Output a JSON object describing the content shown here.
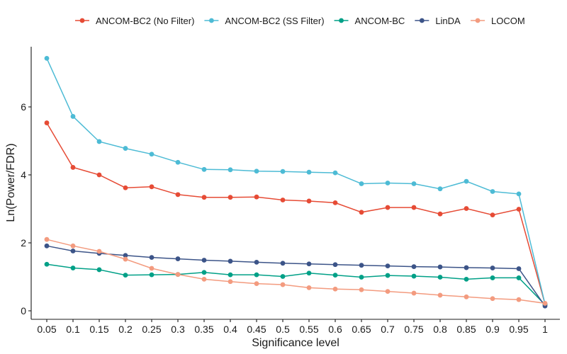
{
  "chart_data": {
    "type": "line",
    "xlabel": "Significance level",
    "ylabel": "Ln(Power/FDR)",
    "categories": [
      "0.05",
      "0.1",
      "0.15",
      "0.2",
      "0.25",
      "0.3",
      "0.35",
      "0.4",
      "0.45",
      "0.5",
      "0.55",
      "0.6",
      "0.65",
      "0.7",
      "0.75",
      "0.8",
      "0.85",
      "0.9",
      "0.95",
      "1"
    ],
    "yticks": [
      "0",
      "2",
      "4",
      "6"
    ],
    "ylim": [
      -0.2,
      7.6
    ],
    "grid": false,
    "legend_position": "top",
    "series": [
      {
        "name": "ANCOM-BC2 (No Filter)",
        "color": "#e64b35",
        "values": [
          5.53,
          4.22,
          4.0,
          3.62,
          3.65,
          3.42,
          3.34,
          3.34,
          3.35,
          3.26,
          3.23,
          3.18,
          2.9,
          3.04,
          3.04,
          2.85,
          3.01,
          2.82,
          2.99,
          0.2
        ]
      },
      {
        "name": "ANCOM-BC2 (SS Filter)",
        "color": "#4dbbd5",
        "values": [
          7.43,
          5.72,
          4.98,
          4.78,
          4.61,
          4.37,
          4.16,
          4.15,
          4.11,
          4.1,
          4.08,
          4.06,
          3.74,
          3.76,
          3.74,
          3.59,
          3.81,
          3.51,
          3.44,
          0.2
        ]
      },
      {
        "name": "ANCOM-BC",
        "color": "#00a087",
        "values": [
          1.37,
          1.26,
          1.21,
          1.05,
          1.06,
          1.07,
          1.13,
          1.06,
          1.06,
          1.01,
          1.11,
          1.05,
          0.99,
          1.04,
          1.02,
          0.99,
          0.93,
          0.97,
          0.97,
          0.18
        ]
      },
      {
        "name": "LinDA",
        "color": "#3c5488",
        "values": [
          1.91,
          1.76,
          1.69,
          1.63,
          1.57,
          1.53,
          1.49,
          1.46,
          1.43,
          1.4,
          1.38,
          1.36,
          1.34,
          1.32,
          1.3,
          1.29,
          1.27,
          1.26,
          1.24,
          0.14
        ]
      },
      {
        "name": "LOCOM",
        "color": "#f39b7f",
        "values": [
          2.1,
          1.91,
          1.75,
          1.52,
          1.25,
          1.07,
          0.93,
          0.86,
          0.8,
          0.77,
          0.68,
          0.64,
          0.62,
          0.57,
          0.52,
          0.46,
          0.41,
          0.36,
          0.33,
          0.22
        ]
      }
    ]
  }
}
